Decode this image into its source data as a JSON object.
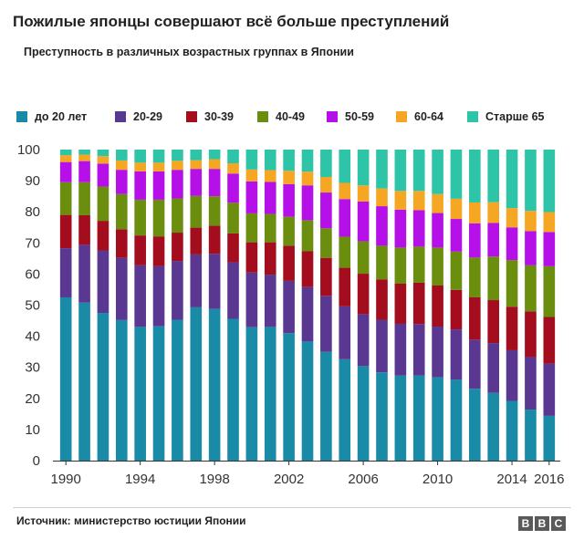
{
  "header": {
    "title": "Пожилые японцы совершают всё больше преступлений",
    "subtitle": "Преступность в различных возрастных группах в Японии"
  },
  "footer": {
    "source": "Источник: министерство юстиции Японии",
    "logo": [
      "B",
      "B",
      "C"
    ]
  },
  "chart_data": {
    "type": "bar",
    "stacked": true,
    "title": "Преступность в различных возрастных группах в Японии",
    "xlabel": "",
    "ylabel": "",
    "ylim": [
      0,
      100
    ],
    "yticks": [
      0,
      10,
      20,
      30,
      40,
      50,
      60,
      70,
      80,
      90,
      100
    ],
    "grid": false,
    "legend_position": "top",
    "categories": [
      "1990",
      "1991",
      "1992",
      "1993",
      "1994",
      "1995",
      "1996",
      "1997",
      "1998",
      "1999",
      "2000",
      "2001",
      "2002",
      "2003",
      "2004",
      "2005",
      "2006",
      "2007",
      "2008",
      "2009",
      "2010",
      "2011",
      "2012",
      "2013",
      "2014",
      "2015",
      "2016"
    ],
    "x_tick_labels": [
      "1990",
      "1994",
      "1998",
      "2002",
      "2006",
      "2010",
      "2014",
      "2016"
    ],
    "series": [
      {
        "name": "до 20 лет",
        "color": "#1a8ba6",
        "values": [
          52.5,
          50.8,
          47.5,
          45.2,
          43.0,
          43.2,
          45.3,
          49.3,
          48.8,
          45.6,
          42.9,
          43.0,
          41.0,
          38.3,
          35.0,
          32.6,
          30.4,
          28.4,
          27.4,
          27.4,
          26.8,
          26.0,
          23.1,
          21.8,
          19.2,
          16.4,
          14.4
        ]
      },
      {
        "name": "20-29",
        "color": "#5a3791",
        "values": [
          15.8,
          18.6,
          20.1,
          20.0,
          19.8,
          19.3,
          18.9,
          17.0,
          17.7,
          18.2,
          17.6,
          16.8,
          16.8,
          17.5,
          18.0,
          17.0,
          16.7,
          16.9,
          16.6,
          16.5,
          16.3,
          16.2,
          15.8,
          16.0,
          16.3,
          16.9,
          16.8
        ]
      },
      {
        "name": "30-39",
        "color": "#a30d1e",
        "values": [
          10.7,
          9.5,
          9.5,
          9.2,
          9.6,
          9.6,
          9.1,
          8.6,
          9.0,
          9.3,
          9.7,
          10.4,
          11.3,
          11.5,
          12.2,
          12.4,
          13.0,
          13.0,
          12.9,
          13.3,
          13.2,
          12.7,
          13.6,
          13.8,
          14.0,
          14.7,
          15.0
        ]
      },
      {
        "name": "40-49",
        "color": "#6b8e0f",
        "values": [
          10.5,
          10.6,
          11.0,
          11.3,
          11.5,
          11.8,
          11.0,
          10.2,
          9.5,
          9.8,
          9.3,
          9.1,
          9.3,
          10.0,
          9.5,
          10.0,
          10.4,
          10.8,
          11.6,
          11.6,
          12.2,
          12.3,
          12.8,
          14.0,
          15.0,
          14.8,
          16.3
        ]
      },
      {
        "name": "50-59",
        "color": "#b510e8",
        "values": [
          6.5,
          6.8,
          7.4,
          7.8,
          9.1,
          9.1,
          9.2,
          8.7,
          8.8,
          9.4,
          10.3,
          10.3,
          10.5,
          11.2,
          11.5,
          12.1,
          12.8,
          12.7,
          12.2,
          11.7,
          11.1,
          10.5,
          11.0,
          10.8,
          10.5,
          11.0,
          11.0
        ]
      },
      {
        "name": "60-64",
        "color": "#f5a623",
        "values": [
          2.2,
          2.1,
          2.4,
          3.0,
          2.8,
          2.8,
          2.9,
          2.8,
          3.1,
          3.3,
          3.8,
          3.8,
          4.3,
          4.4,
          5.0,
          5.2,
          5.2,
          5.7,
          6.0,
          6.2,
          6.1,
          6.5,
          6.7,
          6.7,
          6.2,
          6.5,
          6.4
        ]
      },
      {
        "name": "Старше 65",
        "color": "#2ec4a8",
        "values": [
          1.8,
          1.6,
          2.1,
          3.5,
          4.2,
          4.2,
          3.6,
          3.4,
          3.1,
          4.4,
          6.4,
          6.6,
          6.8,
          7.1,
          8.8,
          10.7,
          11.5,
          12.5,
          13.3,
          13.3,
          14.3,
          15.8,
          17.0,
          16.9,
          18.8,
          19.7,
          20.1
        ]
      }
    ]
  }
}
